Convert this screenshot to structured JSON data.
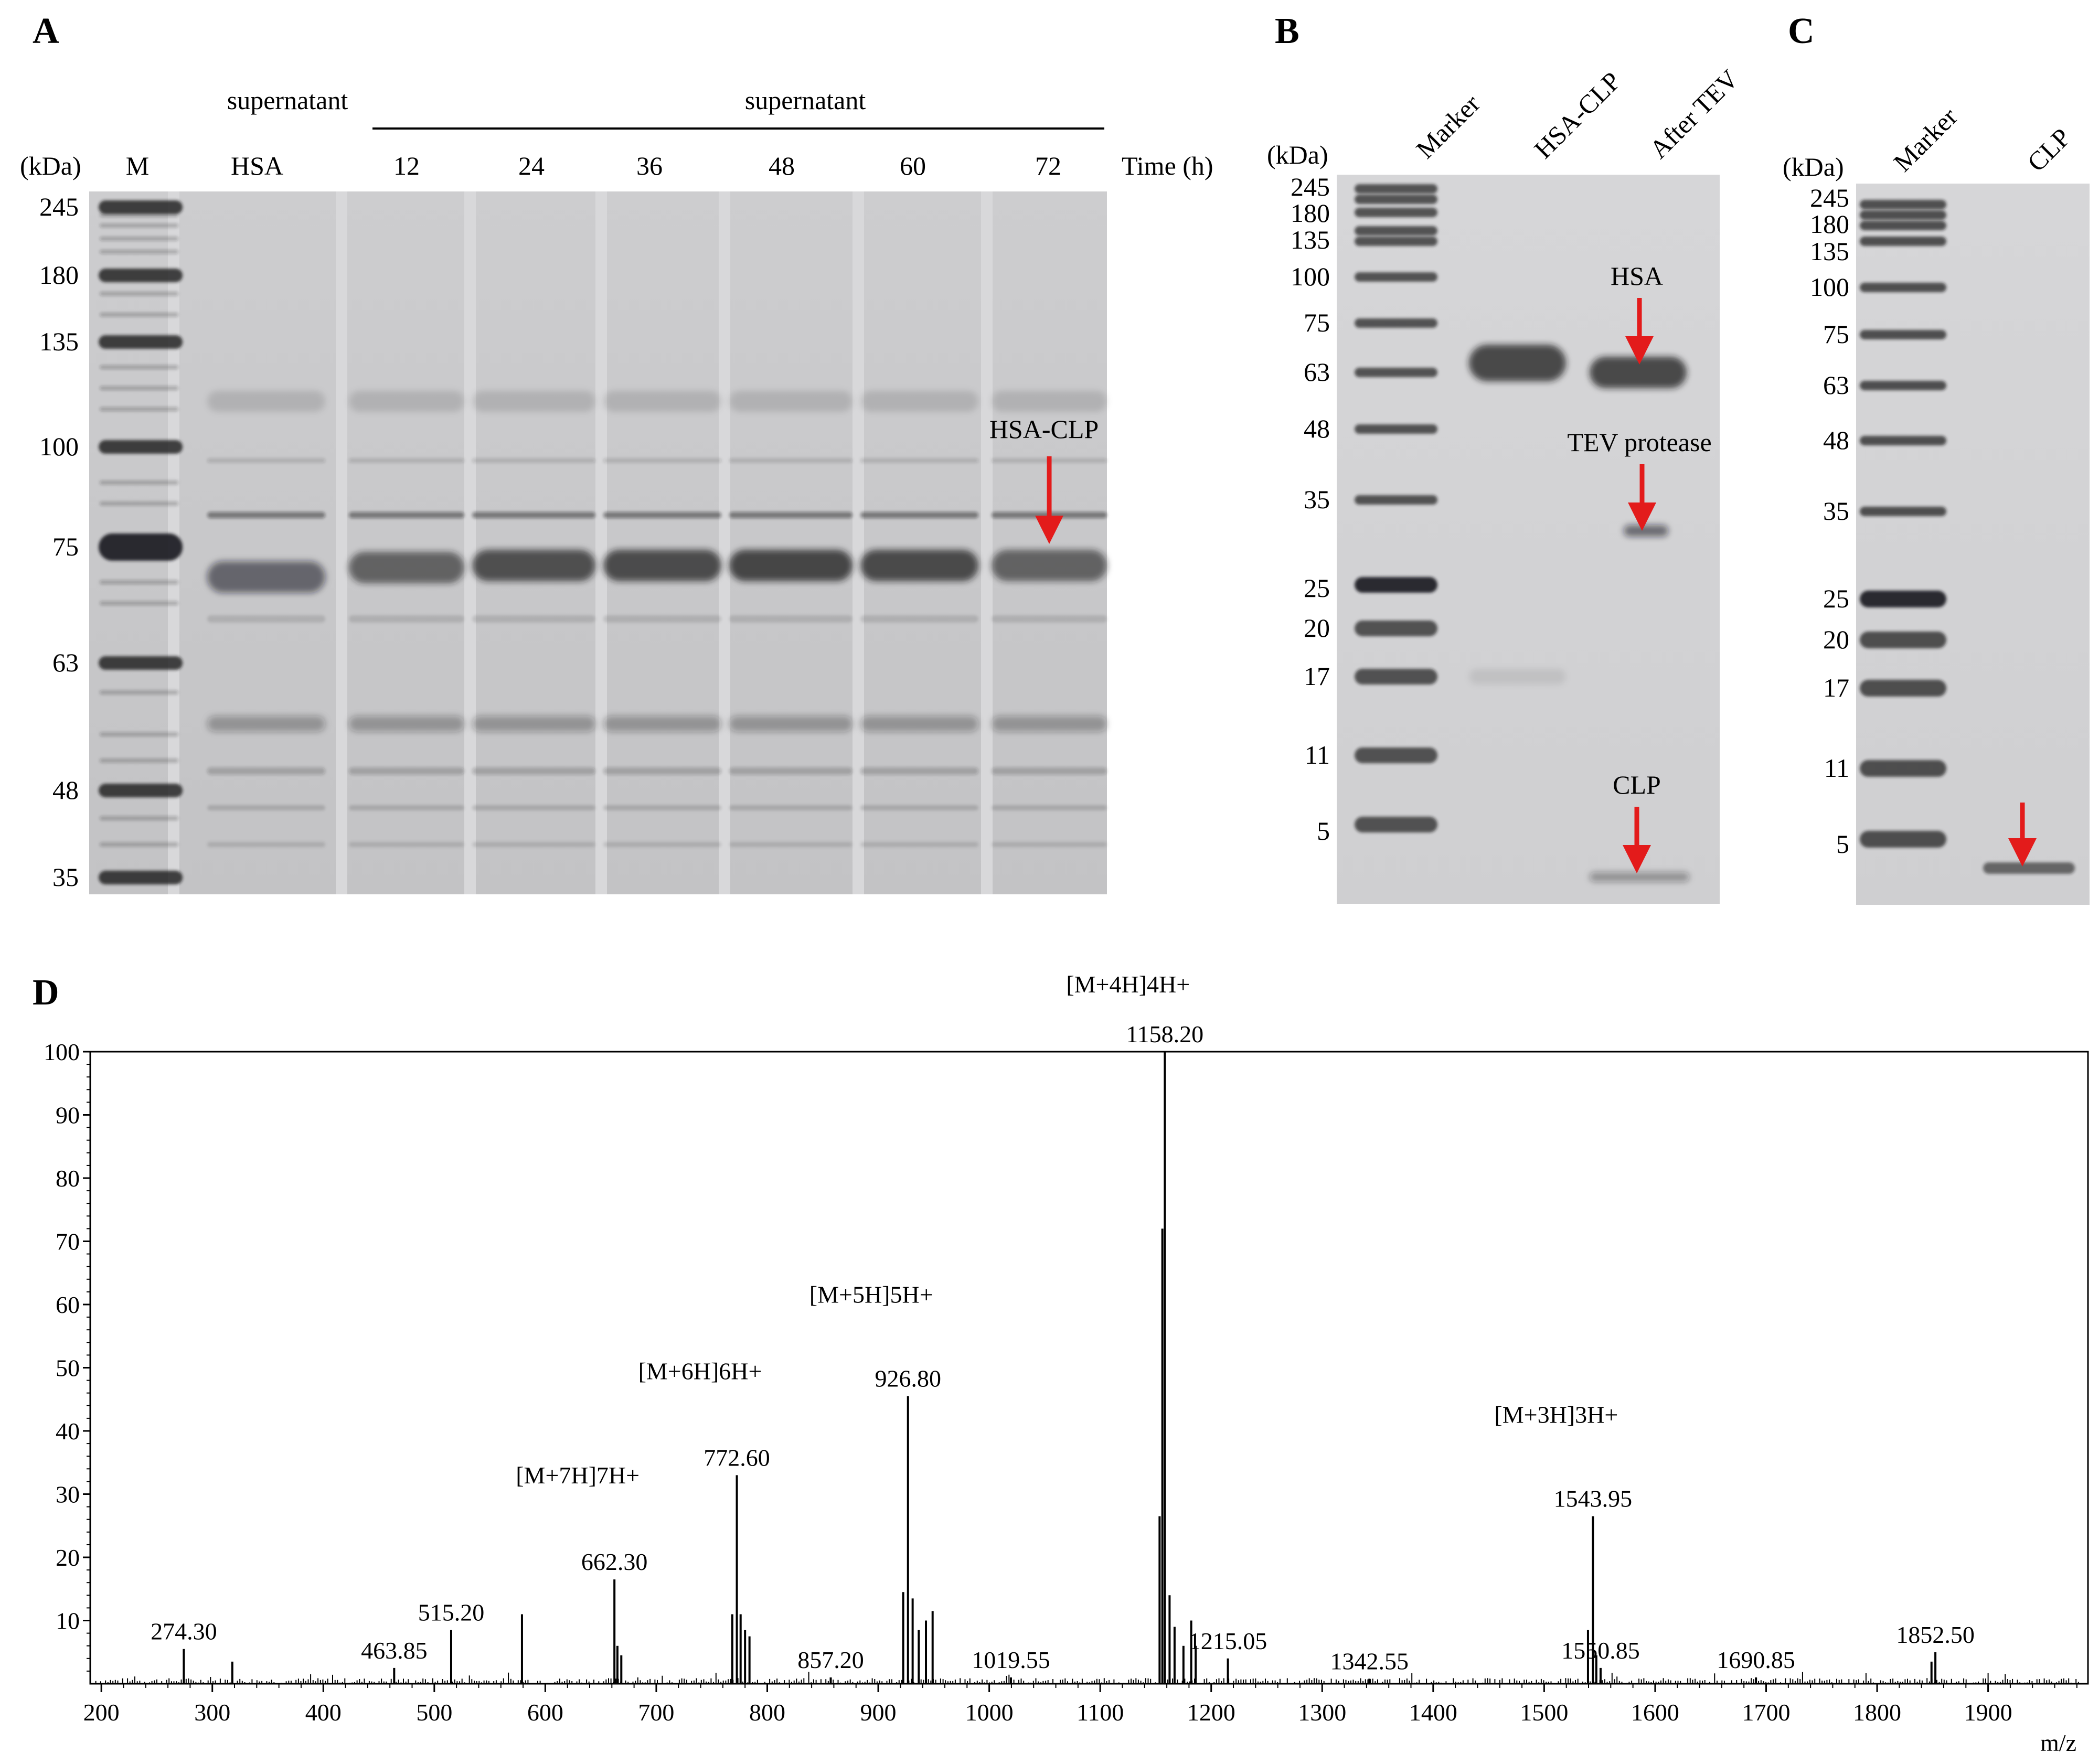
{
  "figure": {
    "panels": {
      "A": {
        "letter": "A",
        "unit_label": "(kDa)",
        "marker_lane_label": "M",
        "group_label": "supernatant",
        "time_label": "Time (h)",
        "lanes": [
          "HSA",
          "12",
          "24",
          "36",
          "48",
          "60",
          "72"
        ],
        "mw_labels": [
          "245",
          "180",
          "135",
          "100",
          "75",
          "63",
          "48",
          "35"
        ],
        "annotation": "HSA-CLP",
        "arrow_color": "#e31b1b"
      },
      "B": {
        "letter": "B",
        "unit_label": "(kDa)",
        "lanes": [
          "Marker",
          "HSA-CLP",
          "After TEV"
        ],
        "mw_labels": [
          "245",
          "180",
          "135",
          "100",
          "75",
          "63",
          "48",
          "35",
          "25",
          "20",
          "17",
          "11",
          "5"
        ],
        "annotations": [
          "HSA",
          "TEV protease",
          "CLP"
        ],
        "arrow_color": "#e31b1b"
      },
      "C": {
        "letter": "C",
        "unit_label": "(kDa)",
        "lanes": [
          "Marker",
          "CLP"
        ],
        "mw_labels": [
          "245",
          "180",
          "135",
          "100",
          "75",
          "63",
          "48",
          "35",
          "25",
          "20",
          "17",
          "11",
          "5"
        ],
        "arrow_color": "#e31b1b"
      },
      "D": {
        "letter": "D",
        "xlabel": "m/z",
        "chart_data": {
          "type": "line",
          "xlabel": "m/z",
          "ylabel": "",
          "xlim": [
            190,
            1990
          ],
          "ylim": [
            0,
            100
          ],
          "x_ticks": [
            200,
            300,
            400,
            500,
            600,
            700,
            800,
            900,
            1000,
            1100,
            1200,
            1300,
            1400,
            1500,
            1600,
            1700,
            1800,
            1900
          ],
          "y_ticks": [
            10,
            20,
            30,
            40,
            50,
            60,
            70,
            80,
            90,
            100
          ],
          "grid": false,
          "peaks": [
            {
              "mz": 274.3,
              "intensity": 5.5,
              "label": "274.30"
            },
            {
              "mz": 318.0,
              "intensity": 3.5,
              "label": ""
            },
            {
              "mz": 463.85,
              "intensity": 2.5,
              "label": "463.85"
            },
            {
              "mz": 515.2,
              "intensity": 8.5,
              "label": "515.20"
            },
            {
              "mz": 579.0,
              "intensity": 11.0,
              "label": ""
            },
            {
              "mz": 662.3,
              "intensity": 16.5,
              "label": "662.30"
            },
            {
              "mz": 665.0,
              "intensity": 6.0,
              "label": ""
            },
            {
              "mz": 668.5,
              "intensity": 4.5,
              "label": ""
            },
            {
              "mz": 772.6,
              "intensity": 33.0,
              "label": "772.60"
            },
            {
              "mz": 768.5,
              "intensity": 11.0,
              "label": ""
            },
            {
              "mz": 776.0,
              "intensity": 11.0,
              "label": ""
            },
            {
              "mz": 780.0,
              "intensity": 8.5,
              "label": ""
            },
            {
              "mz": 784.0,
              "intensity": 7.5,
              "label": ""
            },
            {
              "mz": 857.2,
              "intensity": 1.0,
              "label": "857.20"
            },
            {
              "mz": 926.8,
              "intensity": 45.5,
              "label": "926.80"
            },
            {
              "mz": 922.5,
              "intensity": 14.5,
              "label": ""
            },
            {
              "mz": 931.0,
              "intensity": 13.5,
              "label": ""
            },
            {
              "mz": 936.5,
              "intensity": 8.5,
              "label": ""
            },
            {
              "mz": 943.0,
              "intensity": 10.0,
              "label": ""
            },
            {
              "mz": 949.0,
              "intensity": 11.5,
              "label": ""
            },
            {
              "mz": 1019.55,
              "intensity": 1.0,
              "label": "1019.55"
            },
            {
              "mz": 1158.2,
              "intensity": 100.0,
              "label": "1158.20"
            },
            {
              "mz": 1153.5,
              "intensity": 26.5,
              "label": ""
            },
            {
              "mz": 1156.0,
              "intensity": 72.0,
              "label": ""
            },
            {
              "mz": 1162.5,
              "intensity": 14.0,
              "label": ""
            },
            {
              "mz": 1167.0,
              "intensity": 9.0,
              "label": ""
            },
            {
              "mz": 1175.0,
              "intensity": 6.0,
              "label": ""
            },
            {
              "mz": 1182.0,
              "intensity": 10.0,
              "label": ""
            },
            {
              "mz": 1186.0,
              "intensity": 6.0,
              "label": ""
            },
            {
              "mz": 1215.05,
              "intensity": 4.0,
              "label": "1215.05"
            },
            {
              "mz": 1342.55,
              "intensity": 0.8,
              "label": "1342.55"
            },
            {
              "mz": 1543.95,
              "intensity": 26.5,
              "label": "1543.95"
            },
            {
              "mz": 1539.5,
              "intensity": 8.5,
              "label": ""
            },
            {
              "mz": 1547.0,
              "intensity": 4.5,
              "label": ""
            },
            {
              "mz": 1550.85,
              "intensity": 2.5,
              "label": "1550.85"
            },
            {
              "mz": 1690.85,
              "intensity": 1.0,
              "label": "1690.85"
            },
            {
              "mz": 1852.5,
              "intensity": 5.0,
              "label": "1852.50"
            },
            {
              "mz": 1849.0,
              "intensity": 3.5,
              "label": ""
            }
          ],
          "annotations": [
            {
              "text": "[M+7H]7H+",
              "mz": 662.3
            },
            {
              "text": "[M+6H]6H+",
              "mz": 772.6
            },
            {
              "text": "[M+5H]5H+",
              "mz": 926.8
            },
            {
              "text": "[M+4H]4H+",
              "mz": 1158.2
            },
            {
              "text": "[M+3H]3H+",
              "mz": 1543.95
            }
          ]
        }
      }
    }
  }
}
